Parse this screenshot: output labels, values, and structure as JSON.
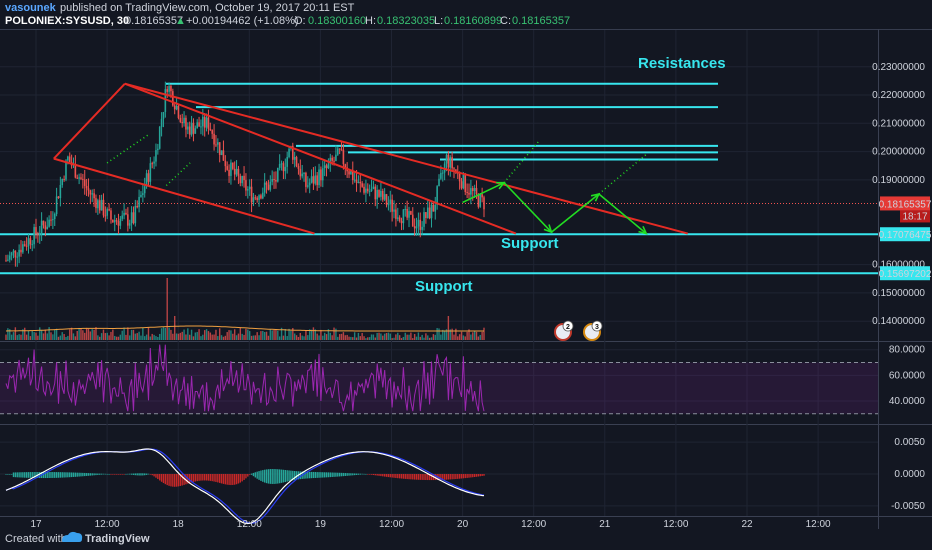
{
  "header": {
    "author": "vasounek",
    "published_text": "published on TradingView.com, October 19, 2017 20:11 EST",
    "symbol": "POLONIEX:SYSUSD, 30",
    "last": "0.18165357",
    "change": "+0.00194462 (+1.08%)",
    "o_label": "O:",
    "o": "0.18300160",
    "h_label": "H:",
    "h": "0.18323035",
    "l_label": "L:",
    "l": "0.18160899",
    "c_label": "C:",
    "c": "0.18165357"
  },
  "footer": {
    "created_with": "Created with",
    "brand": "TradingView"
  },
  "colors": {
    "background": "#131722",
    "up": "#26a69a",
    "down": "#ef5350",
    "cyan": "#37e6ee",
    "trend": "#e52b24",
    "arrow": "#22dd22",
    "rsi": "#9b27b0",
    "macd": "#ffffff",
    "signal": "#2a3df5",
    "text": "#cfd3dc",
    "link": "#5aa7ff",
    "green_text": "#38c172"
  },
  "annotations": {
    "resistances": "Resistances",
    "support_upper": "Support",
    "support_lower": "Support",
    "badge_a": "2",
    "badge_b": "3"
  },
  "chart_data": {
    "type": "candlestick",
    "interval": "30",
    "title": "POLONIEX:SYSUSD, 30",
    "x_ticks": [
      "17",
      "12:00",
      "18",
      "12:00",
      "19",
      "12:00",
      "20",
      "12:00",
      "21",
      "12:00",
      "22",
      "12:00"
    ],
    "price_axis": {
      "ticks": [
        "0.23000000",
        "0.22000000",
        "0.21000000",
        "0.20000000",
        "0.19000000",
        "0.16000000",
        "0.15000000",
        "0.14000000"
      ],
      "ylim": [
        0.133,
        0.243
      ],
      "last_price_label": "0.18165357",
      "countdown_label": "18:17"
    },
    "horizontal_levels": [
      {
        "value": 0.17076475,
        "label": "0.17076475",
        "role": "support"
      },
      {
        "value": 0.15697202,
        "label": "0.15697202",
        "role": "support"
      },
      {
        "value": 0.224,
        "role": "resistance"
      },
      {
        "value": 0.2157,
        "role": "resistance"
      },
      {
        "value": 0.202,
        "role": "resistance"
      },
      {
        "value": 0.1997,
        "role": "resistance"
      },
      {
        "value": 0.1972,
        "role": "resistance"
      }
    ],
    "trendlines": [
      {
        "from": [
          "Oct 17 03:00",
          0.1975
        ],
        "to": [
          "Oct 17 15:00",
          0.224
        ]
      },
      {
        "from": [
          "Oct 17 03:00",
          0.1975
        ],
        "to": [
          "Oct 18 23:00",
          0.171
        ]
      },
      {
        "from": [
          "Oct 17 15:00",
          0.224
        ],
        "to": [
          "Oct 21 14:00",
          0.171
        ]
      },
      {
        "from": [
          "Oct 17 15:00",
          0.224
        ],
        "to": [
          "Oct 20 09:00",
          0.171
        ]
      }
    ],
    "projection_path": [
      [
        "Oct 20 00:00",
        0.182
      ],
      [
        "Oct 20 07:00",
        0.189
      ],
      [
        "Oct 20 15:00",
        0.1715
      ],
      [
        "Oct 20 23:00",
        0.185
      ],
      [
        "Oct 21 07:00",
        0.171
      ]
    ],
    "rsi": {
      "ticks": [
        "80.0000",
        "60.0000",
        "40.0000"
      ],
      "ylim": [
        22,
        86
      ],
      "bands": [
        70,
        30
      ]
    },
    "macd": {
      "ticks": [
        "0.0050",
        "0.0000",
        "-0.0050"
      ],
      "ylim": [
        -0.0066,
        0.0077
      ]
    }
  }
}
